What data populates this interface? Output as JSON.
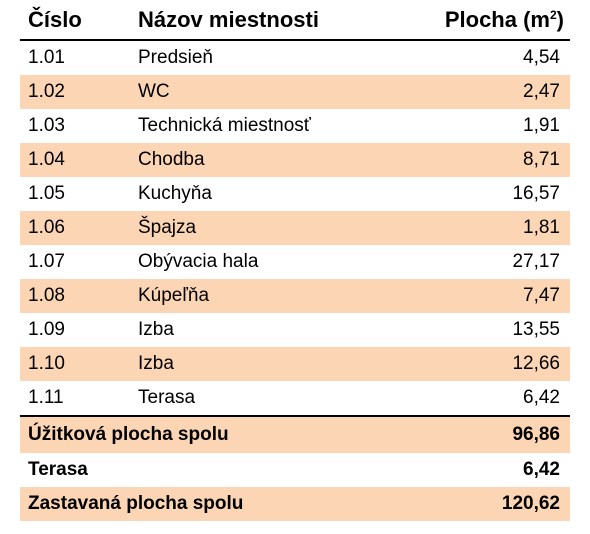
{
  "header": {
    "col_number": "Číslo",
    "col_name": "Názov miestnosti",
    "col_area_prefix": "Plocha (m",
    "col_area_sup": "2",
    "col_area_suffix": ")"
  },
  "rooms": [
    {
      "number": "1.01",
      "name": "Predsieň",
      "area": "4,54",
      "shaded": false
    },
    {
      "number": "1.02",
      "name": "WC",
      "area": "2,47",
      "shaded": true
    },
    {
      "number": "1.03",
      "name": "Technická miestnosť",
      "area": "1,91",
      "shaded": false
    },
    {
      "number": "1.04",
      "name": "Chodba",
      "area": "8,71",
      "shaded": true
    },
    {
      "number": "1.05",
      "name": "Kuchyňa",
      "area": "16,57",
      "shaded": false
    },
    {
      "number": "1.06",
      "name": "Špajza",
      "area": "1,81",
      "shaded": true
    },
    {
      "number": "1.07",
      "name": "Obývacia hala",
      "area": "27,17",
      "shaded": false
    },
    {
      "number": "1.08",
      "name": "Kúpeľňa",
      "area": "7,47",
      "shaded": true
    },
    {
      "number": "1.09",
      "name": "Izba",
      "area": "13,55",
      "shaded": false
    },
    {
      "number": "1.10",
      "name": "Izba",
      "area": "12,66",
      "shaded": true
    },
    {
      "number": "1.11",
      "name": "Terasa",
      "area": "6,42",
      "shaded": false
    }
  ],
  "summary": [
    {
      "label": "Úžitková plocha spolu",
      "value": "96,86",
      "shaded": true
    },
    {
      "label": "Terasa",
      "value": "6,42",
      "shaded": false
    },
    {
      "label": "Zastavaná plocha spolu",
      "value": "120,62",
      "shaded": true
    }
  ],
  "colors": {
    "row_shade": "#fcd5b4",
    "rule": "#000000"
  }
}
